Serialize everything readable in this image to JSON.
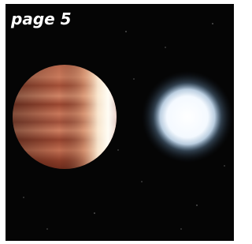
{
  "caption": {
    "label": "page 5"
  }
}
